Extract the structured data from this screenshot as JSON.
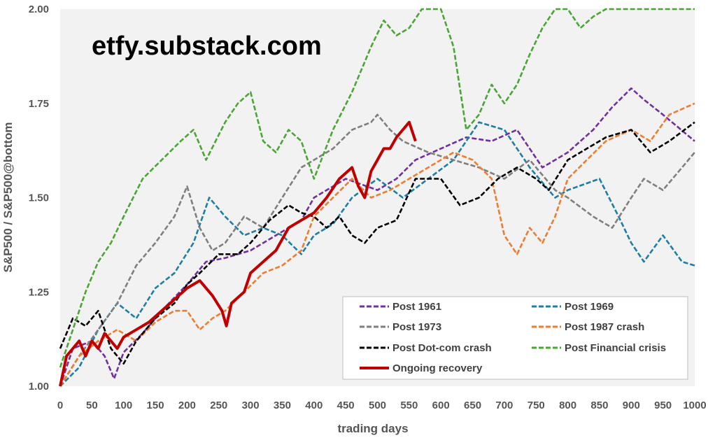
{
  "watermark": "etfy.substack.com",
  "chart_data": {
    "type": "line",
    "title": "",
    "xlabel": "trading days",
    "ylabel": "S&P500 / S&P500@bottom",
    "xlim": [
      0,
      1000
    ],
    "ylim": [
      1.0,
      2.0
    ],
    "x_ticks": [
      0,
      50,
      100,
      150,
      200,
      250,
      300,
      350,
      400,
      450,
      500,
      550,
      600,
      650,
      700,
      750,
      800,
      850,
      900,
      950,
      1000
    ],
    "x_tick_labels": [
      "0",
      "50",
      "100",
      "150",
      "200",
      "250",
      "300",
      "350",
      "400",
      "450",
      "500",
      "550",
      "600",
      "650",
      "700",
      "750",
      "800",
      "850",
      "900",
      "950",
      "1000"
    ],
    "y_ticks": [
      1.0,
      1.25,
      1.5,
      1.75,
      2.0
    ],
    "y_tick_labels": [
      "1.00",
      "1.25",
      "1.50",
      "1.75",
      "2.00"
    ],
    "grid": false,
    "plot_background": "#f2f2f2",
    "legend_position": "bottom-right",
    "series": [
      {
        "name": "Post 1961",
        "color": "#7030a0",
        "style": "dashed",
        "x": [
          0,
          20,
          50,
          70,
          85,
          100,
          130,
          160,
          200,
          230,
          260,
          300,
          340,
          380,
          400,
          450,
          500,
          530,
          560,
          600,
          640,
          680,
          720,
          760,
          800,
          840,
          870,
          900,
          920,
          950,
          1000
        ],
        "y": [
          1.0,
          1.1,
          1.12,
          1.08,
          1.02,
          1.09,
          1.14,
          1.2,
          1.27,
          1.33,
          1.34,
          1.36,
          1.4,
          1.44,
          1.5,
          1.55,
          1.52,
          1.55,
          1.6,
          1.63,
          1.66,
          1.65,
          1.68,
          1.58,
          1.62,
          1.68,
          1.74,
          1.79,
          1.76,
          1.72,
          1.65
        ]
      },
      {
        "name": "Post 1969",
        "color": "#1f7ea3",
        "style": "dashed",
        "x": [
          0,
          30,
          60,
          90,
          120,
          150,
          180,
          210,
          235,
          260,
          290,
          320,
          350,
          380,
          400,
          430,
          460,
          500,
          540,
          580,
          620,
          660,
          700,
          740,
          780,
          800,
          850,
          880,
          900,
          920,
          950,
          980,
          1000
        ],
        "y": [
          1.0,
          1.05,
          1.15,
          1.22,
          1.18,
          1.26,
          1.3,
          1.38,
          1.5,
          1.45,
          1.4,
          1.42,
          1.4,
          1.35,
          1.4,
          1.43,
          1.5,
          1.55,
          1.5,
          1.55,
          1.6,
          1.7,
          1.68,
          1.58,
          1.5,
          1.52,
          1.55,
          1.45,
          1.38,
          1.33,
          1.4,
          1.33,
          1.32
        ]
      },
      {
        "name": "Post 1973",
        "color": "#7f7f7f",
        "style": "dashed",
        "x": [
          0,
          30,
          60,
          90,
          120,
          150,
          180,
          200,
          220,
          240,
          260,
          290,
          320,
          350,
          380,
          400,
          430,
          460,
          490,
          500,
          520,
          540,
          580,
          620,
          660,
          700,
          740,
          780,
          800,
          840,
          870,
          900,
          920,
          950,
          980,
          1000
        ],
        "y": [
          1.0,
          1.08,
          1.15,
          1.22,
          1.32,
          1.38,
          1.45,
          1.53,
          1.42,
          1.36,
          1.38,
          1.45,
          1.42,
          1.5,
          1.58,
          1.6,
          1.63,
          1.68,
          1.7,
          1.72,
          1.68,
          1.65,
          1.62,
          1.6,
          1.58,
          1.55,
          1.6,
          1.52,
          1.5,
          1.45,
          1.42,
          1.5,
          1.55,
          1.52,
          1.58,
          1.62
        ]
      },
      {
        "name": "Post 1987 crash",
        "color": "#ed7d31",
        "style": "dashed",
        "x": [
          0,
          30,
          60,
          90,
          120,
          150,
          180,
          200,
          220,
          240,
          260,
          290,
          320,
          350,
          380,
          400,
          430,
          460,
          490,
          520,
          550,
          580,
          600,
          620,
          650,
          680,
          700,
          720,
          740,
          760,
          780,
          800,
          830,
          860,
          900,
          930,
          960,
          1000
        ],
        "y": [
          1.0,
          1.08,
          1.12,
          1.15,
          1.12,
          1.17,
          1.2,
          1.2,
          1.15,
          1.18,
          1.2,
          1.25,
          1.3,
          1.32,
          1.36,
          1.45,
          1.5,
          1.55,
          1.5,
          1.52,
          1.55,
          1.58,
          1.6,
          1.62,
          1.6,
          1.55,
          1.4,
          1.35,
          1.42,
          1.38,
          1.45,
          1.55,
          1.6,
          1.65,
          1.68,
          1.65,
          1.72,
          1.75
        ]
      },
      {
        "name": "Post Dot-com crash",
        "color": "#000000",
        "style": "dashed",
        "x": [
          0,
          20,
          40,
          60,
          80,
          100,
          120,
          150,
          180,
          200,
          220,
          250,
          280,
          300,
          330,
          360,
          380,
          400,
          420,
          440,
          460,
          480,
          500,
          530,
          560,
          600,
          630,
          660,
          690,
          720,
          750,
          770,
          800,
          830,
          860,
          900,
          930,
          960,
          1000
        ],
        "y": [
          1.1,
          1.18,
          1.16,
          1.2,
          1.1,
          1.06,
          1.12,
          1.18,
          1.22,
          1.27,
          1.3,
          1.35,
          1.35,
          1.38,
          1.44,
          1.48,
          1.46,
          1.45,
          1.42,
          1.45,
          1.4,
          1.38,
          1.42,
          1.44,
          1.55,
          1.55,
          1.48,
          1.5,
          1.55,
          1.58,
          1.55,
          1.52,
          1.6,
          1.63,
          1.66,
          1.68,
          1.62,
          1.65,
          1.7
        ]
      },
      {
        "name": "Post Financial crisis",
        "color": "#4aa534",
        "style": "dashed",
        "x": [
          0,
          20,
          40,
          60,
          80,
          100,
          130,
          160,
          190,
          210,
          230,
          260,
          280,
          300,
          320,
          340,
          360,
          380,
          400,
          430,
          460,
          490,
          510,
          530,
          550,
          570,
          600,
          620,
          640,
          660,
          680,
          700,
          720,
          740,
          760,
          780,
          800,
          820,
          840,
          860,
          900,
          950,
          1000
        ],
        "y": [
          1.05,
          1.15,
          1.25,
          1.33,
          1.38,
          1.45,
          1.55,
          1.6,
          1.65,
          1.68,
          1.6,
          1.7,
          1.75,
          1.78,
          1.65,
          1.62,
          1.68,
          1.65,
          1.55,
          1.68,
          1.78,
          1.9,
          1.97,
          1.93,
          1.95,
          2.0,
          2.0,
          1.9,
          1.68,
          1.72,
          1.8,
          1.75,
          1.8,
          1.88,
          1.95,
          2.0,
          2.0,
          1.95,
          1.98,
          2.0,
          2.0,
          2.0,
          2.0
        ]
      },
      {
        "name": "Ongoing recovery",
        "color": "#c00000",
        "style": "solid",
        "x": [
          0,
          10,
          20,
          30,
          40,
          50,
          60,
          70,
          80,
          90,
          100,
          120,
          140,
          160,
          180,
          200,
          220,
          240,
          255,
          262,
          270,
          290,
          300,
          320,
          340,
          360,
          380,
          400,
          420,
          440,
          460,
          470,
          480,
          490,
          500,
          510,
          520,
          530,
          540,
          550,
          560
        ],
        "y": [
          1.0,
          1.08,
          1.1,
          1.12,
          1.08,
          1.12,
          1.1,
          1.14,
          1.12,
          1.1,
          1.13,
          1.15,
          1.17,
          1.2,
          1.23,
          1.26,
          1.28,
          1.24,
          1.2,
          1.16,
          1.22,
          1.25,
          1.3,
          1.33,
          1.36,
          1.42,
          1.44,
          1.46,
          1.5,
          1.55,
          1.58,
          1.53,
          1.5,
          1.57,
          1.6,
          1.63,
          1.63,
          1.66,
          1.68,
          1.7,
          1.65
        ]
      }
    ]
  }
}
